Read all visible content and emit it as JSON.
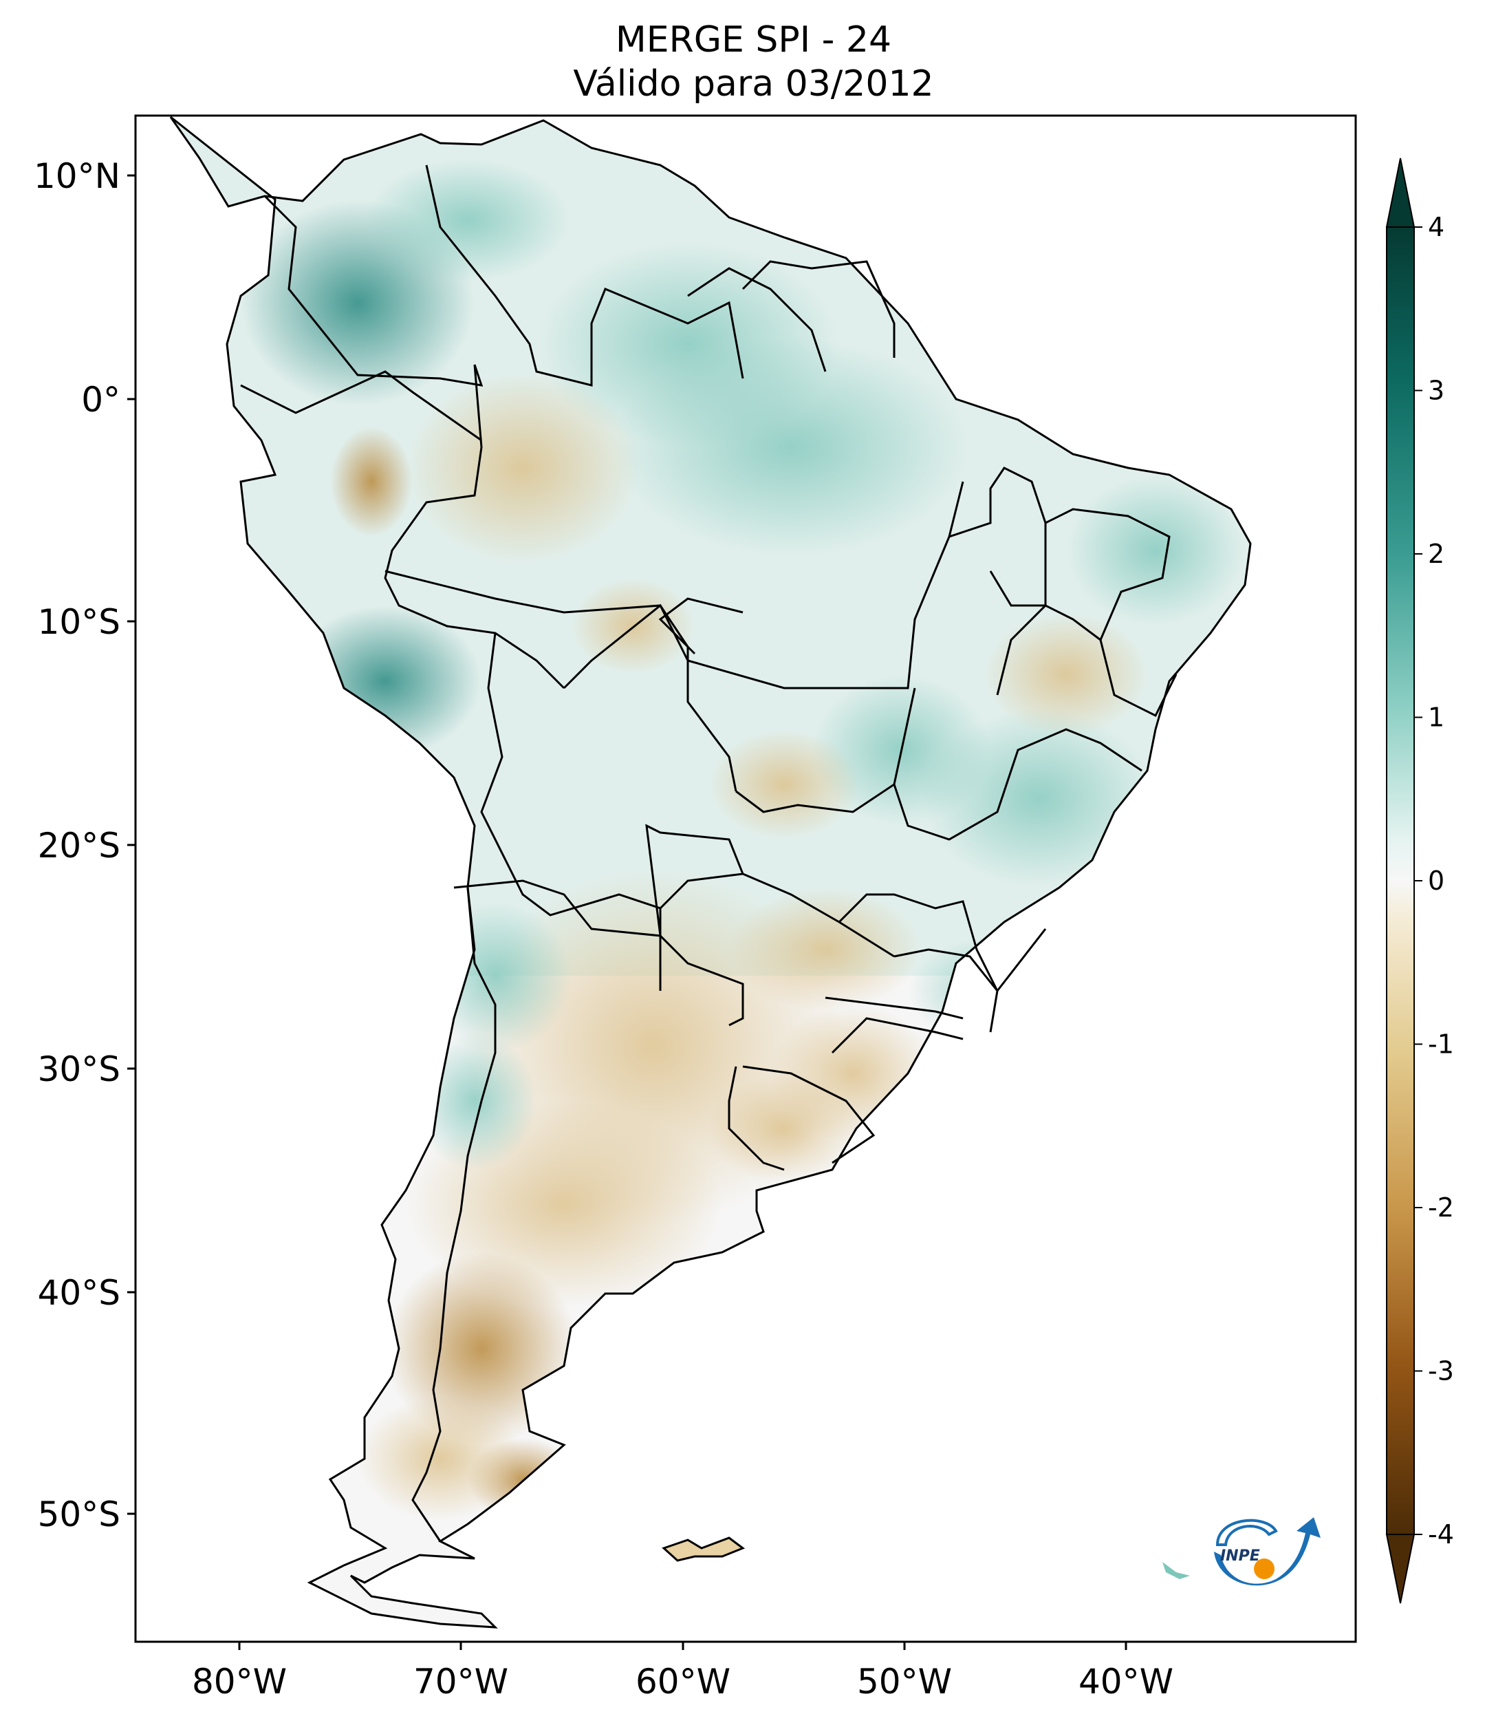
{
  "title": {
    "line1": "MERGE   SPI - 24",
    "line2": "Válido para 03/2012"
  },
  "axes": {
    "lon_ticks": [
      "80°W",
      "70°W",
      "60°W",
      "50°W",
      "40°W"
    ],
    "lat_ticks": [
      "10°N",
      "0°",
      "10°S",
      "20°S",
      "30°S",
      "40°S",
      "50°S"
    ],
    "lon_range": [
      -85,
      -30
    ],
    "lat_range": [
      -56,
      13
    ]
  },
  "colorbar": {
    "ticks": [
      "4",
      "3",
      "2",
      "1",
      "0",
      "-1",
      "-2",
      "-3",
      "-4"
    ],
    "range": [
      -4,
      4
    ],
    "colormap": "BrBG",
    "extend": "both"
  },
  "logo": {
    "text": "INPE",
    "colors": {
      "blue": "#1a6fb5",
      "orange": "#f39200"
    }
  },
  "colors": {
    "wet_strong": "#2a8a82",
    "wet_mild": "#9fd9cf",
    "neutral": "#f6f6f6",
    "dry_mild": "#ead7a8",
    "dry_strong": "#b98a3e"
  }
}
